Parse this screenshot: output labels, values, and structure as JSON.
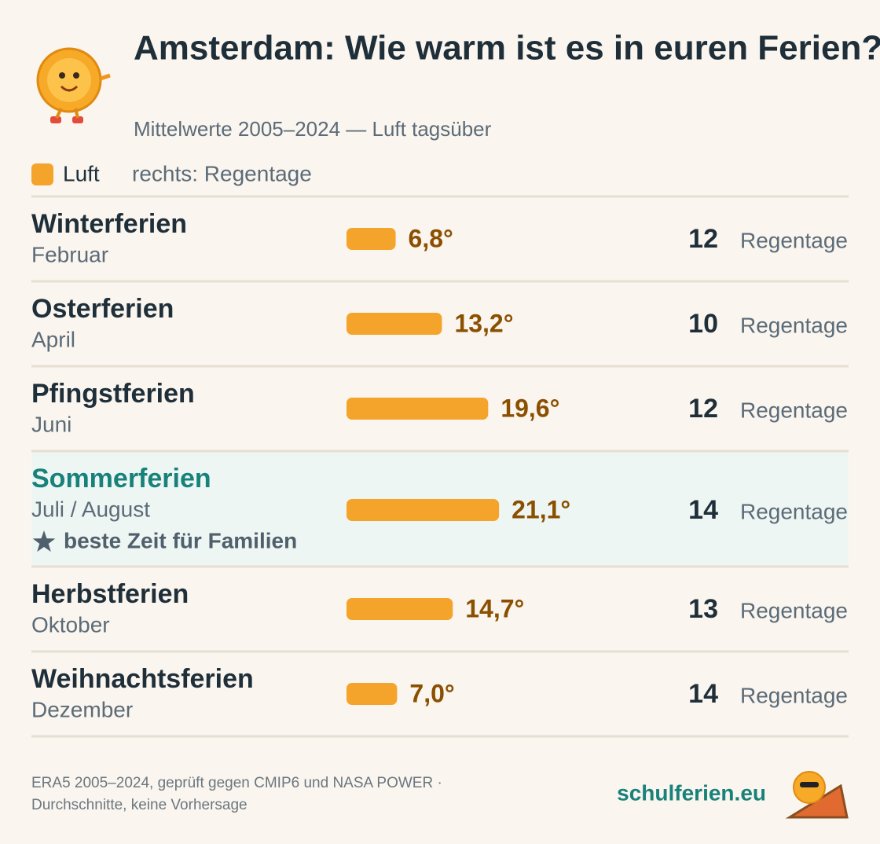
{
  "chart_data": {
    "type": "bar",
    "title": "Amsterdam: Wie warm ist es in euren Ferien?",
    "subtitle": "Mittelwerte 2005–2024 — Luft tagsüber",
    "legend_note": "rechts: Regentage",
    "categories": [
      "Winterferien",
      "Osterferien",
      "Pfingstferien",
      "Sommerferien",
      "Herbstferien",
      "Weihnachtsferien"
    ],
    "sublabels": [
      "Februar",
      "April",
      "Juni",
      "Juli / August",
      "Oktober",
      "Dezember"
    ],
    "annotations": [
      null,
      null,
      null,
      "beste Zeit für Familien",
      null,
      null
    ],
    "series": [
      {
        "name": "Luft",
        "color": "#f4a42a",
        "values": [
          6.8,
          13.2,
          19.6,
          21.1,
          14.7,
          7.0
        ],
        "value_labels": [
          "6,8°",
          "13,2°",
          "19,6°",
          "21,1°",
          "14,7°",
          "7,0°"
        ]
      },
      {
        "name": "Regentage",
        "values": [
          12,
          10,
          12,
          14,
          13,
          14
        ]
      }
    ],
    "source": [
      "ERA5 2005–2024, geprüft gegen CMIP6 und NASA POWER ·",
      "Durchschnitte, keine Vorhersage"
    ],
    "brand": "schulferien.eu"
  }
}
